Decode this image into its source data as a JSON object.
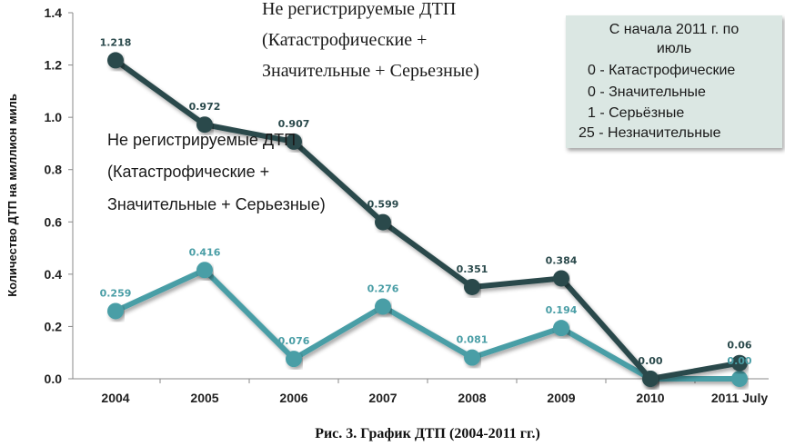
{
  "chart_data": {
    "type": "line",
    "categories": [
      "2004",
      "2005",
      "2006",
      "2007",
      "2008",
      "2009",
      "2010",
      "2011 July"
    ],
    "ylabel": "Количество ДТП на миллион миль",
    "ylim": [
      0,
      1.4
    ],
    "yticks": [
      "0.0",
      "0.2",
      "0.4",
      "0.6",
      "0.8",
      "1.0",
      "1.2",
      "1.4"
    ],
    "series": [
      {
        "values": [
          1.218,
          0.972,
          0.907,
          0.599,
          0.351,
          0.384,
          0.0,
          0.06
        ],
        "labels": [
          "1.218",
          "0.972",
          "0.907",
          "0.599",
          "0.351",
          "0.384",
          "0.00",
          "0.06"
        ],
        "color": "#2b4a4c"
      },
      {
        "values": [
          0.259,
          0.416,
          0.076,
          0.276,
          0.081,
          0.194,
          0.0,
          0.0
        ],
        "labels": [
          "0.259",
          "0.416",
          "0.076",
          "0.276",
          "0.081",
          "0.194",
          "",
          "0.00"
        ],
        "color": "#4a9ea6"
      }
    ],
    "annotations": {
      "top": [
        "Не регистрируемые ДТП",
        "(Катастрофические +",
        "Значительные + Серьезные)"
      ],
      "middle": [
        "Не регистрируемые ДТП",
        "(Катастрофические +",
        "Значительные + Серьезные)"
      ]
    },
    "legend_box": {
      "lines": [
        "С начала 2011 г. по",
        "июль",
        "0 -  Катастрофические",
        "0 -  Значительные",
        "1 -  Серьёзные",
        "25 - Незначительные"
      ],
      "placement": "top-right",
      "color": "#dbe7e3"
    },
    "grid": false
  },
  "caption": "Рис. 3. График ДТП (2004-2011 гг.)"
}
